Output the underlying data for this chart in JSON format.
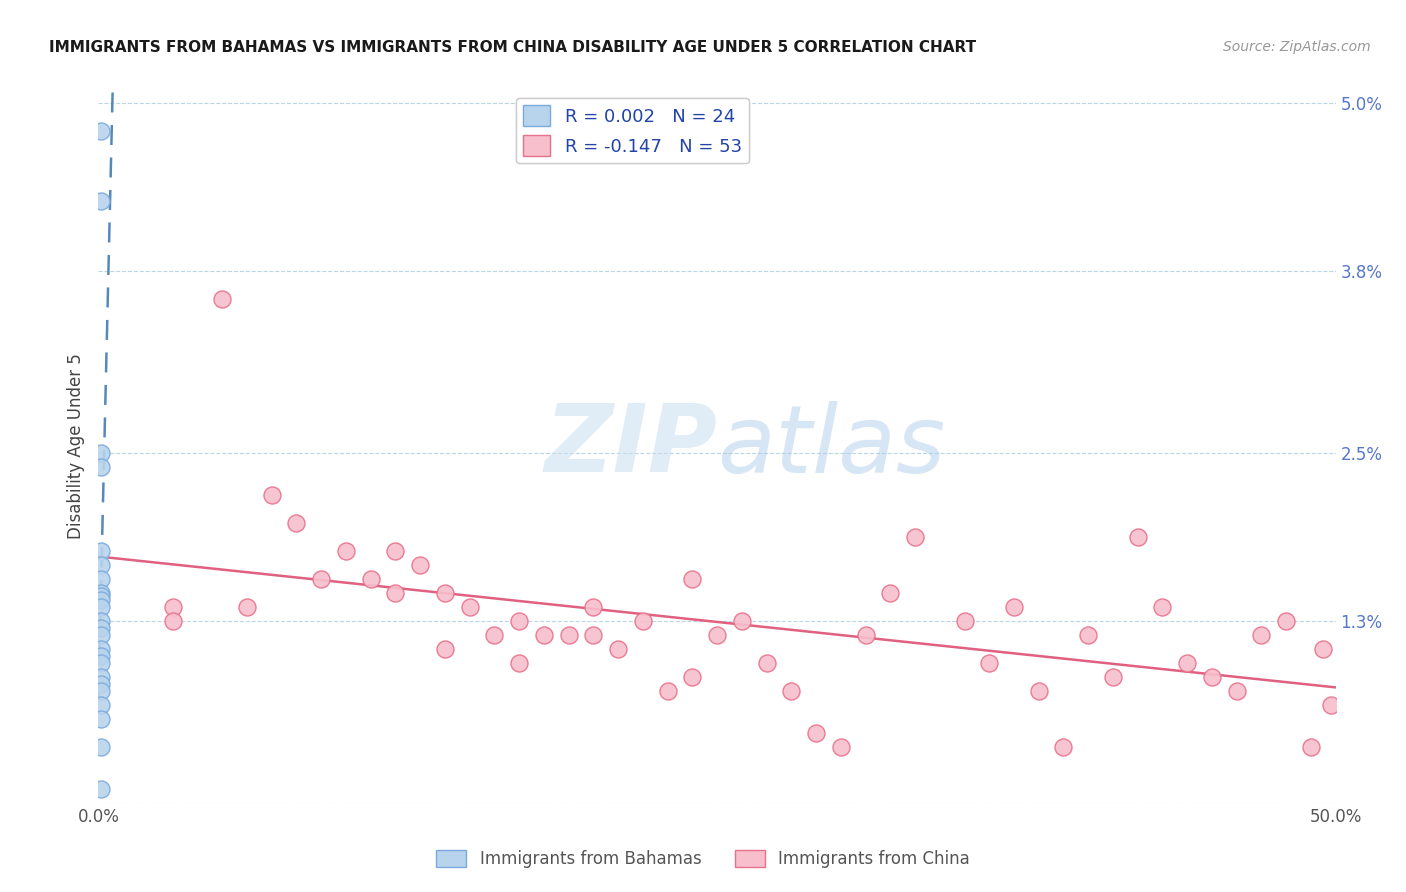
{
  "title": "IMMIGRANTS FROM BAHAMAS VS IMMIGRANTS FROM CHINA DISABILITY AGE UNDER 5 CORRELATION CHART",
  "source": "Source: ZipAtlas.com",
  "ylabel": "Disability Age Under 5",
  "xlim": [
    0.0,
    0.5
  ],
  "ylim": [
    0.0,
    0.051
  ],
  "yticks": [
    0.0,
    0.013,
    0.025,
    0.038,
    0.05
  ],
  "ytick_labels": [
    "",
    "1.3%",
    "2.5%",
    "3.8%",
    "5.0%"
  ],
  "xticks": [
    0.0,
    0.1,
    0.2,
    0.3,
    0.4,
    0.5
  ],
  "xtick_labels": [
    "0.0%",
    "",
    "",
    "",
    "",
    "50.0%"
  ],
  "legend_label1": "R = 0.002   N = 24",
  "legend_label2": "R = -0.147   N = 53",
  "legend_bottom1": "Immigrants from Bahamas",
  "legend_bottom2": "Immigrants from China",
  "color_bahamas_fill": "#b8d4ed",
  "color_bahamas_edge": "#7aaadd",
  "color_china_fill": "#f7bfcc",
  "color_china_edge": "#e8708a",
  "color_bahamas_line": "#5588bb",
  "color_china_line": "#e06080",
  "watermark_zip": "ZIP",
  "watermark_atlas": "atlas",
  "bahamas_x": [
    0.001,
    0.001,
    0.001,
    0.001,
    0.001,
    0.001,
    0.001,
    0.001,
    0.001,
    0.001,
    0.001,
    0.001,
    0.001,
    0.001,
    0.001,
    0.001,
    0.001,
    0.001,
    0.001,
    0.001,
    0.001,
    0.001,
    0.001,
    0.001
  ],
  "bahamas_y": [
    0.048,
    0.043,
    0.025,
    0.024,
    0.018,
    0.017,
    0.016,
    0.015,
    0.0148,
    0.0145,
    0.014,
    0.013,
    0.0125,
    0.012,
    0.011,
    0.0105,
    0.01,
    0.009,
    0.0085,
    0.008,
    0.007,
    0.006,
    0.004,
    0.001
  ],
  "china_x": [
    0.03,
    0.03,
    0.05,
    0.06,
    0.07,
    0.08,
    0.09,
    0.1,
    0.11,
    0.12,
    0.12,
    0.13,
    0.14,
    0.14,
    0.15,
    0.16,
    0.17,
    0.17,
    0.18,
    0.19,
    0.2,
    0.2,
    0.21,
    0.22,
    0.23,
    0.24,
    0.24,
    0.25,
    0.26,
    0.27,
    0.28,
    0.29,
    0.3,
    0.31,
    0.32,
    0.33,
    0.35,
    0.36,
    0.37,
    0.38,
    0.39,
    0.4,
    0.41,
    0.42,
    0.43,
    0.44,
    0.45,
    0.46,
    0.47,
    0.48,
    0.49,
    0.495,
    0.498
  ],
  "china_y": [
    0.014,
    0.013,
    0.036,
    0.014,
    0.022,
    0.02,
    0.016,
    0.018,
    0.016,
    0.018,
    0.015,
    0.017,
    0.011,
    0.015,
    0.014,
    0.012,
    0.01,
    0.013,
    0.012,
    0.012,
    0.014,
    0.012,
    0.011,
    0.013,
    0.008,
    0.016,
    0.009,
    0.012,
    0.013,
    0.01,
    0.008,
    0.005,
    0.004,
    0.012,
    0.015,
    0.019,
    0.013,
    0.01,
    0.014,
    0.008,
    0.004,
    0.012,
    0.009,
    0.019,
    0.014,
    0.01,
    0.009,
    0.008,
    0.012,
    0.013,
    0.004,
    0.011,
    0.007
  ]
}
